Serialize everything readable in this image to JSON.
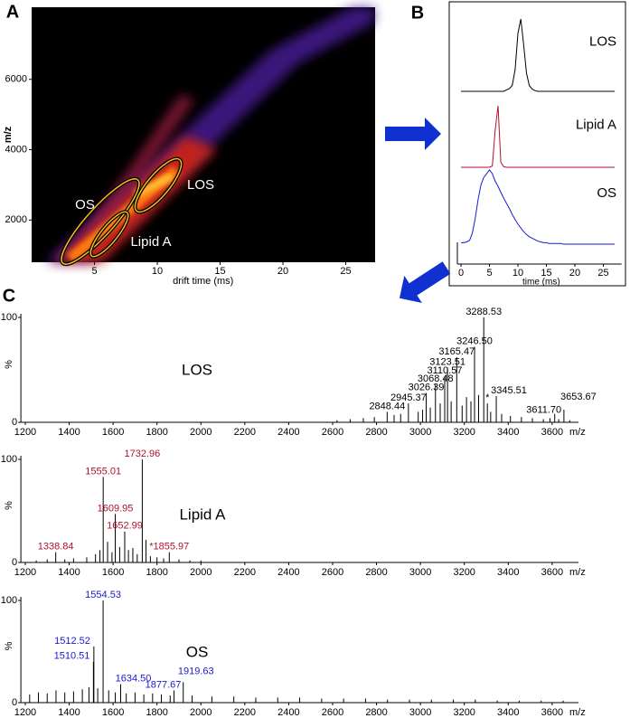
{
  "chart_data": [
    {
      "type": "heatmap",
      "panel": "A",
      "xlabel": "drift time (ms)",
      "ylabel": "m/z",
      "xlim": [
        0,
        27.3
      ],
      "ylim": [
        800,
        8050
      ],
      "xticks": [
        5,
        10,
        15,
        20,
        25
      ],
      "yticks": [
        2000,
        4000,
        6000
      ],
      "annotations": [
        "OS",
        "LOS",
        "Lipid A"
      ]
    },
    {
      "type": "line",
      "panel": "B",
      "xlabel": "time (ms)",
      "xlim": [
        0,
        28.2
      ],
      "ylim": [
        0,
        100
      ],
      "xticks": [
        0,
        5,
        10,
        15,
        20,
        25
      ],
      "x": [
        0,
        0.5,
        1,
        1.5,
        2,
        2.5,
        3,
        3.5,
        4,
        4.5,
        5,
        5.5,
        6,
        6.5,
        7,
        7.5,
        8,
        8.5,
        9,
        9.5,
        10,
        10.5,
        11,
        11.5,
        12,
        12.5,
        13,
        13.5,
        14,
        14.5,
        15,
        15.5,
        16,
        16.5,
        17,
        17.5,
        18,
        18.5,
        19,
        19.5,
        20,
        20.5,
        21,
        21.5,
        22,
        22.5,
        23,
        23.5,
        24,
        24.5,
        25,
        25.5,
        26,
        26.5,
        27
      ],
      "series": [
        {
          "name": "LOS",
          "color": "#000000",
          "values": [
            0,
            0,
            0,
            0,
            0,
            0,
            0,
            0,
            0,
            0,
            0,
            0,
            0,
            0,
            0,
            0,
            2,
            4,
            8,
            30,
            80,
            100,
            65,
            25,
            8,
            3,
            1,
            0,
            0,
            0,
            0,
            0,
            0,
            0,
            0,
            0,
            0,
            0,
            0,
            0,
            0,
            0,
            0,
            0,
            0,
            0,
            0,
            0,
            0,
            0,
            0,
            0,
            0,
            0,
            0
          ]
        },
        {
          "name": "Lipid A",
          "color": "#b0122e",
          "values": [
            0,
            0,
            0,
            0,
            0,
            0,
            0,
            0,
            0,
            0,
            0,
            2,
            60,
            100,
            8,
            1,
            0,
            0,
            0,
            0,
            0,
            0,
            0,
            0,
            0,
            0,
            0,
            0,
            0,
            0,
            0,
            0,
            0,
            0,
            0,
            0,
            0,
            0,
            0,
            0,
            0,
            0,
            0,
            0,
            0,
            0,
            0,
            0,
            0,
            0,
            0,
            0,
            0,
            0,
            0
          ]
        },
        {
          "name": "OS",
          "color": "#1a1acc",
          "values": [
            2,
            2,
            3,
            5,
            15,
            35,
            60,
            80,
            90,
            95,
            100,
            95,
            85,
            78,
            70,
            62,
            55,
            48,
            40,
            33,
            27,
            22,
            17,
            13,
            10,
            8,
            6,
            4,
            3,
            2,
            2,
            1,
            1,
            1,
            1,
            1,
            0,
            0,
            0,
            0,
            0,
            0,
            0,
            0,
            0,
            0,
            0,
            0,
            0,
            0,
            0,
            0,
            0,
            0,
            0
          ]
        }
      ]
    },
    {
      "type": "stick",
      "panel": "C",
      "title": "LOS",
      "color": "#000000",
      "label_color": "#000000",
      "ylabel": "%",
      "xlabel": "m/z",
      "xlim": [
        1180,
        3720
      ],
      "ylim": [
        0,
        100
      ],
      "xticks": [
        1200,
        1400,
        1600,
        1800,
        2000,
        2200,
        2400,
        2600,
        2800,
        3000,
        3200,
        3400,
        3600
      ],
      "yticks": [
        0,
        100
      ],
      "x": [
        2848.44,
        2945.37,
        3026.39,
        3068.48,
        3110.57,
        3123.51,
        3165.47,
        3246.5,
        3288.53,
        3305,
        3345.51,
        3611.7,
        3653.67,
        2620,
        2680,
        2740,
        2790,
        2880,
        2910,
        2990,
        3010,
        3045,
        3090,
        3140,
        3190,
        3210,
        3230,
        3265,
        3320,
        3370,
        3410,
        3460,
        3510,
        3560,
        3590,
        3630,
        3680
      ],
      "values": [
        10,
        18,
        28,
        36,
        44,
        52,
        62,
        72,
        100,
        18,
        25,
        8,
        12,
        2,
        3,
        4,
        5,
        7,
        8,
        10,
        12,
        14,
        18,
        20,
        16,
        24,
        20,
        26,
        10,
        8,
        6,
        5,
        4,
        3,
        4,
        3,
        2
      ],
      "peak_labels": [
        "2848.44",
        "2945.37",
        "3026.39",
        "3068.48",
        "3110.57",
        "3123.51",
        "3165.47",
        "3246.50",
        "3288.53",
        "*",
        "3345.51",
        "3611.70",
        "3653.67",
        null,
        null,
        null,
        null,
        null,
        null,
        null,
        null,
        null,
        null,
        null,
        null,
        null,
        null,
        null,
        null,
        null,
        null,
        null,
        null,
        null,
        null,
        null,
        null
      ]
    },
    {
      "type": "stick",
      "title": "Lipid A",
      "color": "#000000",
      "label_color": "#b0122e",
      "ylabel": "%",
      "xlabel": "m/z",
      "xlim": [
        1180,
        3720
      ],
      "ylim": [
        0,
        100
      ],
      "xticks": [
        1200,
        1400,
        1600,
        1800,
        2000,
        2200,
        2400,
        2600,
        2800,
        3000,
        3200,
        3400,
        3600
      ],
      "yticks": [
        0,
        100
      ],
      "x": [
        1338.84,
        1555.01,
        1609.95,
        1652.99,
        1732.96,
        1855.97,
        1250,
        1300,
        1380,
        1420,
        1480,
        1520,
        1540,
        1575,
        1595,
        1630,
        1670,
        1690,
        1710,
        1750,
        1770,
        1800,
        1830,
        1900,
        1950,
        2000
      ],
      "values": [
        10,
        83,
        47,
        30,
        100,
        10,
        2,
        3,
        3,
        4,
        5,
        8,
        12,
        20,
        10,
        15,
        12,
        14,
        8,
        22,
        6,
        5,
        4,
        3,
        2,
        2
      ],
      "peak_labels": [
        "1338.84",
        "1555.01",
        "1609.95",
        "1652.99",
        "1732.96",
        "*1855.97",
        null,
        null,
        null,
        null,
        null,
        null,
        null,
        null,
        null,
        null,
        null,
        null,
        null,
        null,
        null,
        null,
        null,
        null,
        null,
        null
      ]
    },
    {
      "type": "stick",
      "title": "OS",
      "color": "#000000",
      "label_color": "#1a1acc",
      "ylabel": "%",
      "xlabel": "m/z",
      "xlim": [
        1180,
        3720
      ],
      "ylim": [
        0,
        100
      ],
      "xticks": [
        1200,
        1400,
        1600,
        1800,
        2000,
        2200,
        2400,
        2600,
        2800,
        3000,
        3200,
        3400,
        3600
      ],
      "yticks": [
        0,
        100
      ],
      "x": [
        1510.51,
        1512.52,
        1554.53,
        1634.5,
        1877.67,
        1919.63,
        1220,
        1260,
        1300,
        1340,
        1380,
        1420,
        1460,
        1490,
        1530,
        1580,
        1610,
        1660,
        1700,
        1740,
        1780,
        1820,
        1860,
        1960,
        2050,
        2150,
        2250,
        2350,
        2450,
        2550,
        2650,
        2750,
        2850,
        2950,
        3050,
        3150,
        3250,
        3350,
        3450,
        3550,
        3650
      ],
      "values": [
        40,
        55,
        100,
        18,
        12,
        20,
        8,
        10,
        9,
        12,
        10,
        11,
        13,
        15,
        14,
        12,
        10,
        9,
        10,
        8,
        9,
        8,
        7,
        7,
        6,
        6,
        5,
        5,
        5,
        4,
        4,
        4,
        3,
        3,
        3,
        3,
        3,
        2,
        2,
        2,
        2
      ],
      "peak_labels": [
        "1510.51",
        "1512.52",
        "1554.53",
        "1634.50",
        "1877.67",
        "1919.63",
        null,
        null,
        null,
        null,
        null,
        null,
        null,
        null,
        null,
        null,
        null,
        null,
        null,
        null,
        null,
        null,
        null,
        null,
        null,
        null,
        null,
        null,
        null,
        null,
        null,
        null,
        null,
        null,
        null,
        null,
        null,
        null,
        null,
        null,
        null
      ]
    }
  ]
}
